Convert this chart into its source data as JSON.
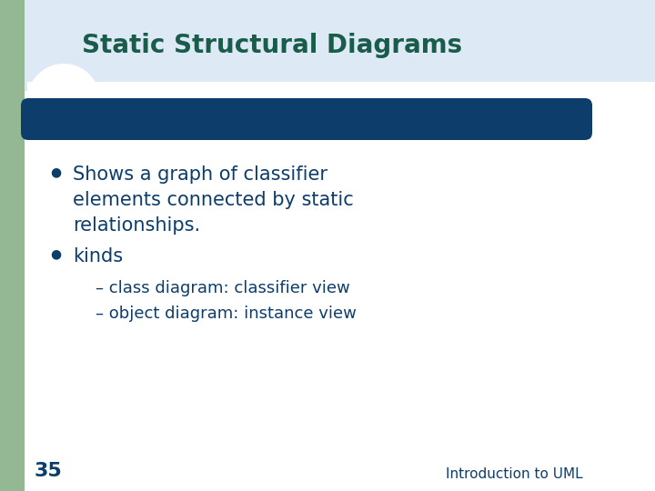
{
  "title": "Static Structural Diagrams",
  "title_color": "#1a5c4a",
  "title_fontsize": 20,
  "header_bar_color": "#0d3d6b",
  "left_bar_color": "#93b893",
  "left_bar_width": 0.038,
  "bg_color": "#ffffff",
  "title_bg_color": "#ddeaf5",
  "bullet1_line1": "Shows a graph of classifier",
  "bullet1_line2": "elements connected by static",
  "bullet1_line3": "relationships.",
  "bullet2": "kinds",
  "sub1": "class diagram: classifier view",
  "sub2": "object diagram: instance view",
  "bullet_color": "#0d3d6b",
  "text_color": "#0d3d6b",
  "bullet_fontsize": 15,
  "sub_fontsize": 13,
  "page_number": "35",
  "footer_text": "Introduction to UML",
  "footer_fontsize": 11
}
